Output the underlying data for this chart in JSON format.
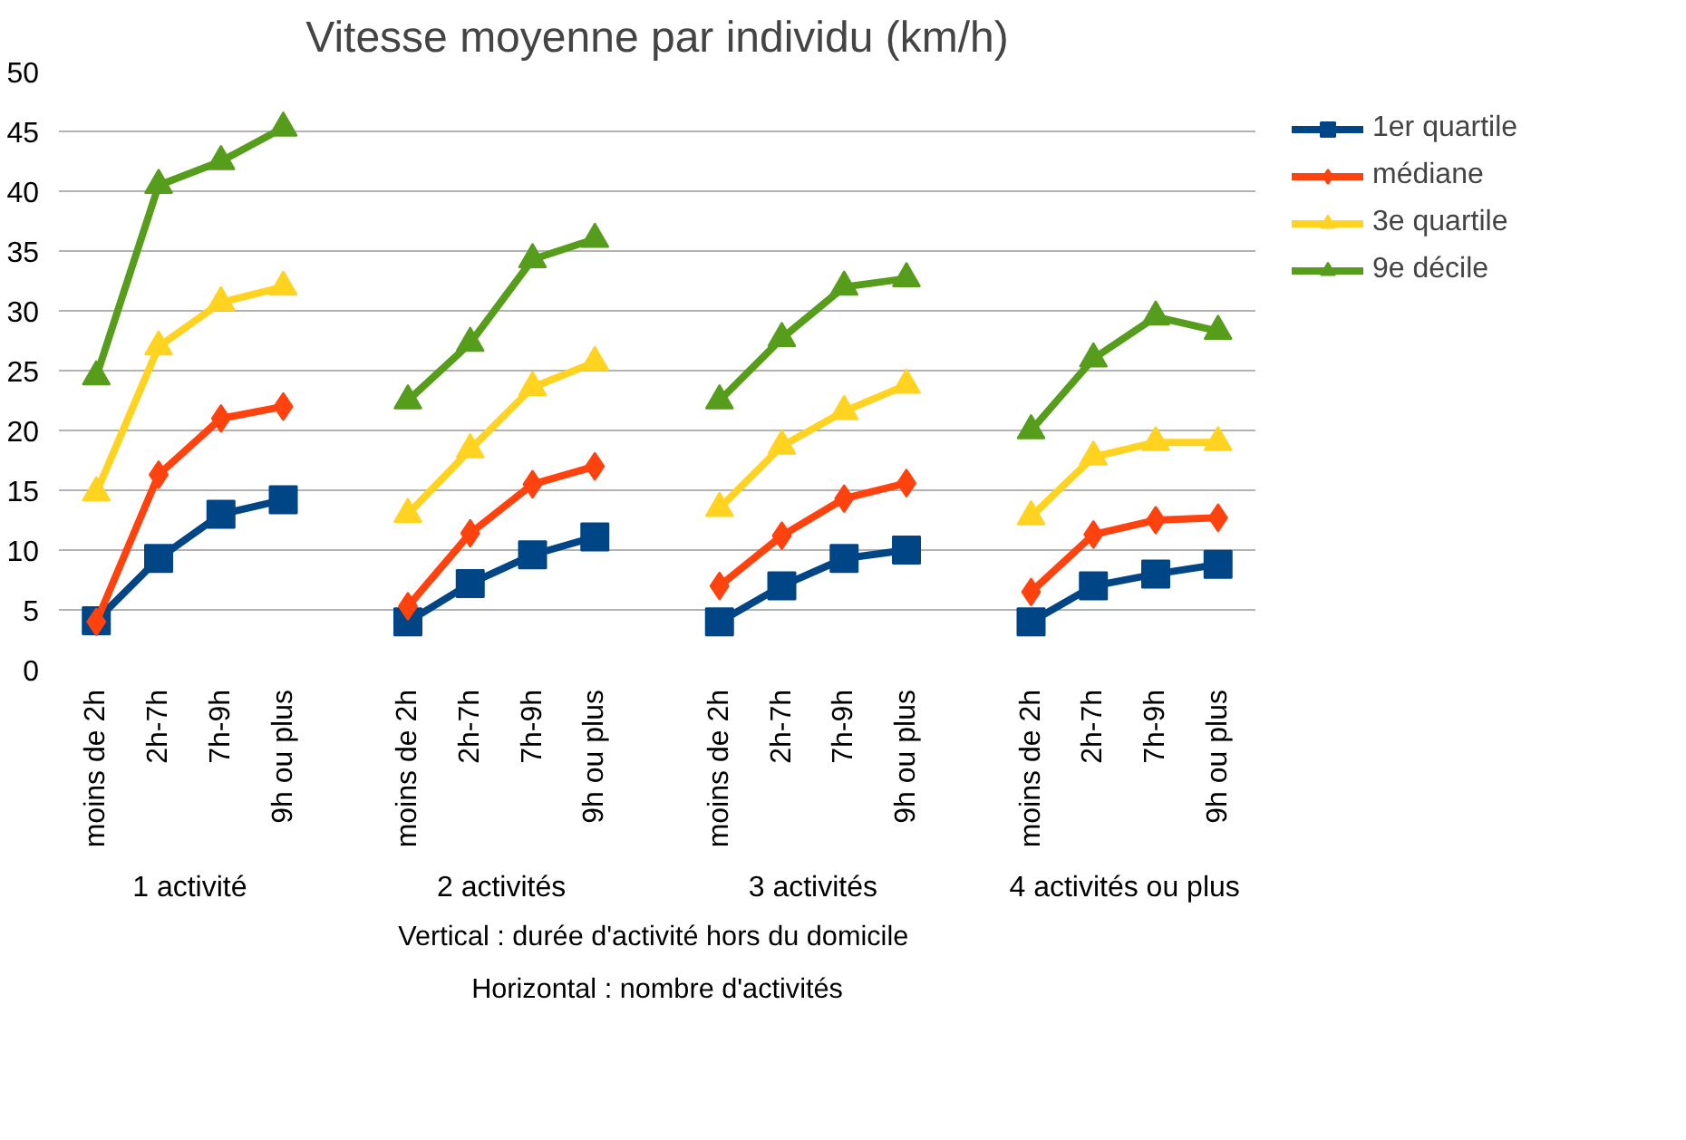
{
  "chart_data": {
    "type": "line",
    "title": "Vitesse moyenne par individu (km/h)",
    "categories": [
      "moins de 2h",
      "2h-7h",
      "7h-9h",
      "9h ou plus",
      null,
      "moins de 2h",
      "2h-7h",
      "7h-9h",
      "9h ou plus",
      null,
      "moins de 2h",
      "2h-7h",
      "7h-9h",
      "9h ou plus",
      null,
      "moins de 2h",
      "2h-7h",
      "7h-9h",
      "9h ou plus"
    ],
    "series": [
      {
        "name": "1er quartile",
        "color": "#004586",
        "marker": "square",
        "values": [
          4.1,
          9.3,
          13,
          14.2,
          null,
          4,
          7.2,
          9.6,
          11.1,
          null,
          4,
          7,
          9.3,
          10,
          null,
          4,
          7,
          8,
          8.8
        ]
      },
      {
        "name": "médiane",
        "color": "#ff420e",
        "marker": "diamond",
        "values": [
          4,
          16.3,
          21,
          22,
          null,
          5.3,
          11.4,
          15.5,
          17,
          null,
          7,
          11.2,
          14.3,
          15.6,
          null,
          6.5,
          11.3,
          12.5,
          12.7
        ]
      },
      {
        "name": "3e quartile",
        "color": "#ffd320",
        "marker": "triangle",
        "values": [
          14.8,
          27,
          30.7,
          32,
          null,
          13,
          18.4,
          23.6,
          25.7,
          null,
          13.5,
          18.7,
          21.6,
          23.8,
          null,
          12.8,
          17.8,
          19,
          19
        ]
      },
      {
        "name": "9e décile",
        "color": "#579d1c",
        "marker": "triangle",
        "values": [
          24.5,
          40.5,
          42.5,
          45.3,
          null,
          22.5,
          27.3,
          34.3,
          36,
          null,
          22.5,
          27.7,
          32,
          32.7,
          null,
          20,
          26,
          29.5,
          28.3
        ]
      }
    ],
    "ylim": [
      0,
      50
    ],
    "yticks": [
      0,
      5,
      10,
      15,
      20,
      25,
      30,
      35,
      40,
      45,
      50
    ],
    "grid": "y",
    "legend": "right",
    "annotations": [
      "1 activité",
      "2 activités",
      "3 activités",
      "4 activités ou plus",
      "Vertical : durée d'activité  hors du domicile",
      "Horizontal : nombre d'activités"
    ]
  }
}
